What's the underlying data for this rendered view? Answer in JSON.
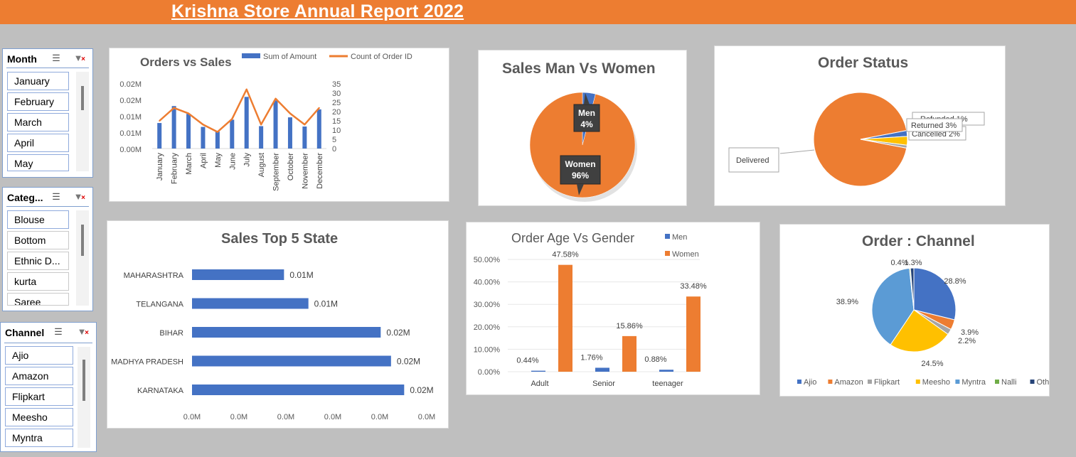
{
  "header": {
    "title": "Krishna Store Annual Report 2022"
  },
  "slicers": {
    "month": {
      "title": "Month",
      "items": [
        {
          "label": "January",
          "selected": true
        },
        {
          "label": "February",
          "selected": true
        },
        {
          "label": "March",
          "selected": true
        },
        {
          "label": "April",
          "selected": true
        },
        {
          "label": "May",
          "selected": true
        }
      ]
    },
    "category": {
      "title": "Categ...",
      "items": [
        {
          "label": "Blouse",
          "selected": true
        },
        {
          "label": "Bottom",
          "selected": false
        },
        {
          "label": "Ethnic D...",
          "selected": false
        },
        {
          "label": "kurta",
          "selected": false
        },
        {
          "label": "Saree",
          "selected": false
        }
      ]
    },
    "channel": {
      "title": "Channel",
      "items": [
        {
          "label": "Ajio",
          "selected": true
        },
        {
          "label": "Amazon",
          "selected": true
        },
        {
          "label": "Flipkart",
          "selected": true
        },
        {
          "label": "Meesho",
          "selected": true
        },
        {
          "label": "Myntra",
          "selected": true
        }
      ]
    }
  },
  "chart_data": [
    {
      "id": "orders_vs_sales",
      "type": "bar",
      "title": "Orders vs Sales",
      "categories": [
        "January",
        "February",
        "March",
        "April",
        "May",
        "June",
        "July",
        "August",
        "September",
        "October",
        "November",
        "December"
      ],
      "series": [
        {
          "name": "Sum of Amount",
          "kind": "bar",
          "axis": "left",
          "values": [
            0.0131,
            0.0218,
            0.0178,
            0.0111,
            0.0087,
            0.0148,
            0.0265,
            0.0115,
            0.0247,
            0.016,
            0.0113,
            0.0201
          ]
        },
        {
          "name": "Count of Order ID",
          "kind": "line",
          "axis": "right",
          "values": [
            15,
            22,
            19,
            13,
            9,
            16,
            32,
            13,
            27,
            19,
            13,
            22
          ]
        }
      ],
      "y_left": {
        "ticks": [
          "0.02M",
          "0.02M",
          "0.01M",
          "0.01M",
          "0.00M"
        ],
        "max": 0.035
      },
      "y_right": {
        "ticks": [
          "35",
          "30",
          "25",
          "20",
          "15",
          "10",
          "5",
          "0"
        ],
        "min": 0,
        "max": 35
      },
      "legend": "top"
    },
    {
      "id": "sales_men_vs_women",
      "type": "pie",
      "title": "Sales Man Vs Women",
      "labels": [
        "Men",
        "Women"
      ],
      "values": [
        4,
        96
      ],
      "value_labels": [
        "4%",
        "96%"
      ],
      "colors": [
        "#4472c4",
        "#ed7d31"
      ]
    },
    {
      "id": "order_status",
      "type": "pie",
      "title": "Order Status",
      "labels": [
        "Delivered",
        "Cancelled",
        "Returned",
        "Refunded"
      ],
      "values": [
        94,
        2,
        3,
        1
      ],
      "value_labels": [
        "Delivered",
        "Cancelled 2%",
        "Returned 3%",
        "Refunded 1%"
      ],
      "colors": [
        "#ed7d31",
        "#4472c4",
        "#ffc000",
        "#a5a5a5"
      ]
    },
    {
      "id": "sales_top5_state",
      "type": "bar",
      "orientation": "horizontal",
      "title": "Sales Top 5 State",
      "categories": [
        "MAHARASHTRA",
        "TELANGANA",
        "BIHAR",
        "MADHYA PRADESH",
        "KARNATAKA"
      ],
      "values": [
        0.0098,
        0.0124,
        0.0201,
        0.0212,
        0.0226
      ],
      "value_labels": [
        "0.01M",
        "0.01M",
        "0.02M",
        "0.02M",
        "0.02M"
      ],
      "x_ticks": [
        "0.0M",
        "0.0M",
        "0.0M",
        "0.0M",
        "0.0M",
        "0.0M"
      ],
      "xlim": [
        0,
        0.025
      ]
    },
    {
      "id": "order_age_vs_gender",
      "type": "bar",
      "title": "Order Age Vs Gender",
      "categories": [
        "Adult",
        "Senior",
        "teenager"
      ],
      "series": [
        {
          "name": "Men",
          "values": [
            0.44,
            1.76,
            0.88
          ],
          "value_labels": [
            "0.44%",
            "1.76%",
            "0.88%"
          ]
        },
        {
          "name": "Women",
          "values": [
            47.58,
            15.86,
            33.48
          ],
          "value_labels": [
            "47.58%",
            "15.86%",
            "33.48%"
          ]
        }
      ],
      "y_ticks": [
        "50.00%",
        "40.00%",
        "30.00%",
        "20.00%",
        "10.00%",
        "0.00%"
      ],
      "ylim": [
        0,
        50
      ],
      "legend": "top-right"
    },
    {
      "id": "order_channel",
      "type": "pie",
      "title": "Order : Channel",
      "labels": [
        "Ajio",
        "Amazon",
        "Flipkart",
        "Meesho",
        "Myntra",
        "Nalli",
        "Others"
      ],
      "values": [
        28.8,
        3.9,
        2.2,
        24.5,
        38.9,
        0.4,
        1.3
      ],
      "value_labels": [
        "28.8%",
        "3.9%",
        "2.2%",
        "24.5%",
        "38.9%",
        "0.4%",
        "1.3%"
      ],
      "colors": [
        "#4472c4",
        "#ed7d31",
        "#a5a5a5",
        "#ffc000",
        "#5b9bd5",
        "#70ad47",
        "#264478"
      ],
      "legend": "bottom"
    }
  ]
}
